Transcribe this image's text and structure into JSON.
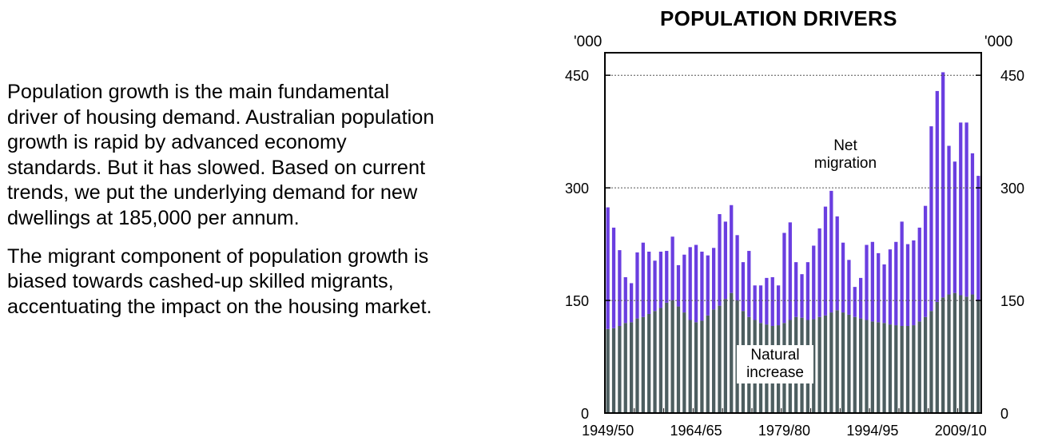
{
  "text": {
    "para1": [
      "Population growth is the main fundamental",
      "driver of housing demand.  Australian population",
      "growth is rapid by advanced economy",
      "standards.  But it has slowed.  Based on current",
      "trends, we put the underlying demand for new",
      "dwellings at 185,000 per annum."
    ],
    "para2": [
      "The migrant component of population growth is",
      "biased towards cashed-up skilled migrants,",
      "accentuating the impact on the housing market."
    ]
  },
  "chart_data": {
    "type": "bar",
    "stacked": true,
    "title": "POPULATION DRIVERS",
    "unit_left": "'000",
    "unit_right": "'000",
    "ylim": [
      0,
      480
    ],
    "yticks": [
      "0",
      "150",
      "300",
      "450"
    ],
    "grid": "dotted at 150, 300, 450",
    "xtick_labels": [
      "1949/50",
      "1964/65",
      "1979/80",
      "1994/95",
      "2009/10"
    ],
    "annotations": {
      "net_migration": [
        "Net",
        "migration"
      ],
      "natural_increase": [
        "Natural",
        "increase"
      ]
    },
    "colors": {
      "natural_increase": "#4d5e60",
      "net_migration": "#6a3ee0",
      "grid": "#555555"
    },
    "categories": [
      "1949/50",
      "1950/51",
      "1951/52",
      "1952/53",
      "1953/54",
      "1954/55",
      "1955/56",
      "1956/57",
      "1957/58",
      "1958/59",
      "1959/60",
      "1960/61",
      "1961/62",
      "1962/63",
      "1963/64",
      "1964/65",
      "1965/66",
      "1966/67",
      "1967/68",
      "1968/69",
      "1969/70",
      "1970/71",
      "1971/72",
      "1972/73",
      "1973/74",
      "1974/75",
      "1975/76",
      "1976/77",
      "1977/78",
      "1978/79",
      "1979/80",
      "1980/81",
      "1981/82",
      "1982/83",
      "1983/84",
      "1984/85",
      "1985/86",
      "1986/87",
      "1987/88",
      "1988/89",
      "1989/90",
      "1990/91",
      "1991/92",
      "1992/93",
      "1993/94",
      "1994/95",
      "1995/96",
      "1996/97",
      "1997/98",
      "1998/99",
      "1999/00",
      "2000/01",
      "2001/02",
      "2002/03",
      "2003/04",
      "2004/05",
      "2005/06",
      "2006/07",
      "2007/08",
      "2008/09",
      "2009/10",
      "2010/11",
      "2011/12",
      "2012/13"
    ],
    "series": [
      {
        "name": "Natural increase",
        "values": [
          112,
          113,
          116,
          120,
          121,
          126,
          128,
          132,
          136,
          140,
          147,
          150,
          142,
          134,
          124,
          121,
          123,
          130,
          138,
          143,
          152,
          160,
          150,
          136,
          128,
          124,
          120,
          118,
          116,
          117,
          120,
          124,
          128,
          127,
          124,
          125,
          128,
          130,
          134,
          137,
          134,
          131,
          128,
          126,
          124,
          122,
          121,
          120,
          118,
          117,
          116,
          116,
          117,
          122,
          128,
          136,
          148,
          154,
          158,
          160,
          157,
          155,
          158,
          150
        ]
      },
      {
        "name": "Net migration",
        "values": [
          162,
          134,
          101,
          61,
          52,
          88,
          99,
          83,
          67,
          75,
          69,
          85,
          55,
          77,
          97,
          103,
          92,
          80,
          82,
          122,
          103,
          117,
          87,
          65,
          88,
          46,
          50,
          62,
          65,
          53,
          120,
          130,
          73,
          58,
          77,
          98,
          118,
          145,
          162,
          125,
          93,
          73,
          40,
          54,
          100,
          106,
          92,
          78,
          100,
          111,
          139,
          109,
          113,
          125,
          148,
          246,
          281,
          300,
          198,
          175,
          230,
          232,
          188,
          166
        ]
      }
    ]
  }
}
